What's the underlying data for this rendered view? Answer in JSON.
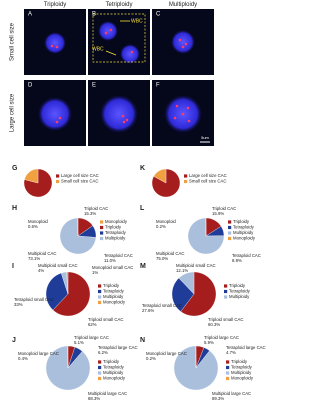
{
  "images": {
    "column_titles": [
      "Triploidy",
      "Tetriploidy",
      "Multiploidy"
    ],
    "row_titles": [
      "Small cell size",
      "Large cell size"
    ],
    "panel_labels": [
      "A",
      "B",
      "C",
      "D",
      "E",
      "F"
    ],
    "annotations": [
      "WBC",
      "WBC"
    ],
    "scale_bar": "5um"
  },
  "chart_data": [
    {
      "type": "pie",
      "panel_label": "G",
      "categories": [
        "Large cell size CAC",
        "Small cell size CAC"
      ],
      "values": [
        79,
        21
      ],
      "colors": [
        "#a51d1d",
        "#f0a040"
      ]
    },
    {
      "type": "pie",
      "panel_label": "H",
      "categories": [
        "Triploid CAC",
        "Tetraploid CAC",
        "Multiploid CAC",
        "Monoploid"
      ],
      "values": [
        15.3,
        11.0,
        73.1,
        0.6
      ],
      "value_labels": [
        "15.3%",
        "11.0%",
        "73.1%",
        "0.6%"
      ],
      "colors": [
        "#a51d1d",
        "#1f3c99",
        "#a9bfdc",
        "#f0a040"
      ],
      "legend": [
        {
          "name": "Monoploidy",
          "color": "#f0a040"
        },
        {
          "name": "Triploidy",
          "color": "#a51d1d"
        },
        {
          "name": "Tetraploidy",
          "color": "#1f3c99"
        },
        {
          "name": "Multiploidy",
          "color": "#a9bfdc"
        }
      ]
    },
    {
      "type": "pie",
      "panel_label": "I",
      "categories": [
        "Triploid small CAC",
        "Tetraploid small CAC",
        "Multiploid small CAC",
        "Monoploid small CAC"
      ],
      "values": [
        62,
        33,
        4,
        1
      ],
      "value_labels": [
        "62%",
        "33%",
        "4%",
        "1%"
      ],
      "colors": [
        "#a51d1d",
        "#1f3c99",
        "#a9bfdc",
        "#f0a040"
      ],
      "legend": [
        {
          "name": "Triploidy",
          "color": "#a51d1d"
        },
        {
          "name": "Tetraploidy",
          "color": "#1f3c99"
        },
        {
          "name": "Multiploidy",
          "color": "#a9bfdc"
        },
        {
          "name": "Monoploidy",
          "color": "#f0a040"
        }
      ]
    },
    {
      "type": "pie",
      "panel_label": "J",
      "categories": [
        "Triploid large CAC",
        "Tetraploid large CAC",
        "Multiploid large CAC",
        "Monoploid large CAC"
      ],
      "values": [
        5.1,
        6.2,
        88.3,
        0.4
      ],
      "value_labels": [
        "5.1%",
        "6.2%",
        "88.3%",
        "0.4%"
      ],
      "colors": [
        "#a51d1d",
        "#1f3c99",
        "#a9bfdc",
        "#f0a040"
      ],
      "legend": [
        {
          "name": "Triploidy",
          "color": "#a51d1d"
        },
        {
          "name": "Tetraploidy",
          "color": "#1f3c99"
        },
        {
          "name": "Multiploidy",
          "color": "#a9bfdc"
        },
        {
          "name": "Monoploidy",
          "color": "#f0a040"
        }
      ]
    },
    {
      "type": "pie",
      "panel_label": "K",
      "categories": [
        "Large cell size CAC",
        "Small cell size CAC"
      ],
      "values": [
        83,
        17
      ],
      "colors": [
        "#a51d1d",
        "#f0a040"
      ]
    },
    {
      "type": "pie",
      "panel_label": "L",
      "categories": [
        "Triploid CAC",
        "Tetraploid CAC",
        "Multiploid CAC",
        "Monoploid"
      ],
      "values": [
        15.9,
        8.9,
        75.0,
        0.2
      ],
      "value_labels": [
        "15.9%",
        "8.9%",
        "75.0%",
        "0.2%"
      ],
      "colors": [
        "#a51d1d",
        "#1f3c99",
        "#a9bfdc",
        "#f0a040"
      ],
      "legend": [
        {
          "name": "Triploidy",
          "color": "#a51d1d"
        },
        {
          "name": "Tetraploidy",
          "color": "#1f3c99"
        },
        {
          "name": "Multiploidy",
          "color": "#a9bfdc"
        },
        {
          "name": "Monoploidy",
          "color": "#f0a040"
        }
      ]
    },
    {
      "type": "pie",
      "panel_label": "M",
      "categories": [
        "Triploid small CAC",
        "Tetraploid small CAC",
        "Multiploid small CAC"
      ],
      "values": [
        60.3,
        27.6,
        12.1
      ],
      "value_labels": [
        "60.3%",
        "27.6%",
        "12.1%"
      ],
      "colors": [
        "#a51d1d",
        "#1f3c99",
        "#a9bfdc"
      ],
      "legend": [
        {
          "name": "Triploidy",
          "color": "#a51d1d"
        },
        {
          "name": "Tetraploidy",
          "color": "#1f3c99"
        },
        {
          "name": "Multiploidy",
          "color": "#a9bfdc"
        }
      ]
    },
    {
      "type": "pie",
      "panel_label": "N",
      "categories": [
        "Triploid large CAC",
        "Tetraploid large CAC",
        "Multiploid large CAC",
        "Monoploid large CAC"
      ],
      "values": [
        5.9,
        4.7,
        89.3,
        0.2
      ],
      "value_labels": [
        "5.9%",
        "4.7%",
        "89.3%",
        "0.2%"
      ],
      "colors": [
        "#a51d1d",
        "#1f3c99",
        "#a9bfdc",
        "#f0a040"
      ],
      "legend": [
        {
          "name": "Triploidy",
          "color": "#a51d1d"
        },
        {
          "name": "Tetraploidy",
          "color": "#1f3c99"
        },
        {
          "name": "Multiploidy",
          "color": "#a9bfdc"
        },
        {
          "name": "Monoploidy",
          "color": "#f0a040"
        }
      ]
    }
  ]
}
